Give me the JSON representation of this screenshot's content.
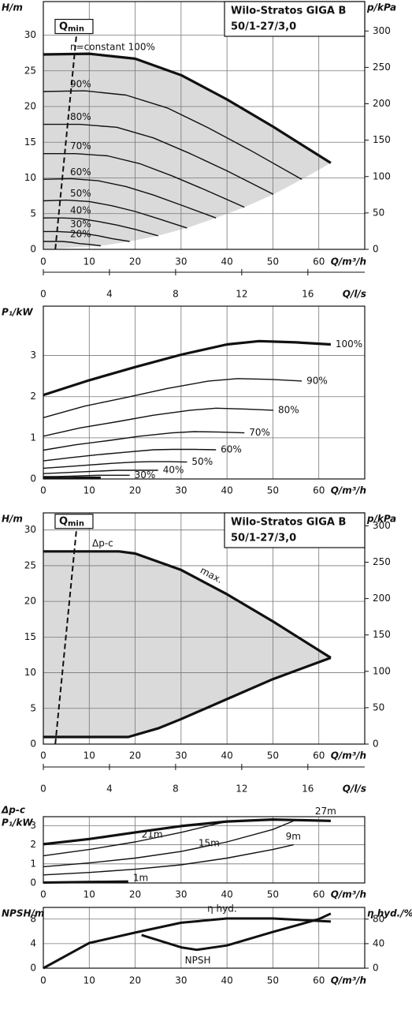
{
  "chart_data": [
    {
      "type": "line",
      "title_box": [
        "Wilo-Stratos GIGA B",
        "50/1-27/3,0"
      ],
      "ylabel": "H/m",
      "y2label": "p/kPa",
      "xlabel": "Q/m³/h",
      "x2label": "Q/l/s",
      "xlim": [
        0,
        70
      ],
      "xticks": [
        0,
        10,
        20,
        30,
        40,
        50,
        60
      ],
      "ylim": [
        0,
        34.7
      ],
      "yticks": [
        0,
        5,
        10,
        15,
        20,
        25,
        30
      ],
      "y2lim": [
        0,
        340.4
      ],
      "y2ticks": [
        0,
        50,
        100,
        150,
        200,
        250,
        300
      ],
      "x2lim": [
        0,
        19.44
      ],
      "x2ticks": [
        0,
        4,
        8,
        12,
        16
      ],
      "grid": true,
      "fill_color": "#dadada",
      "qmin": {
        "label": "Q",
        "label_sub": "min",
        "x": [
          2.6,
          7.2
        ],
        "values": [
          0,
          30
        ]
      },
      "series": [
        {
          "name": "n=constant 100%",
          "color": "#111",
          "width": 3.2,
          "x": [
            0,
            10,
            20,
            30,
            40,
            50,
            62.6
          ],
          "values": [
            27.3,
            27.4,
            26.7,
            24.4,
            21,
            17.2,
            12.1
          ]
        },
        {
          "name": "90%",
          "color": "#111",
          "width": 1.4,
          "x": [
            0,
            9,
            18,
            27,
            36,
            45,
            56.3
          ],
          "values": [
            22.1,
            22.2,
            21.6,
            19.8,
            17.0,
            13.9,
            9.8
          ]
        },
        {
          "name": "80%",
          "color": "#111",
          "width": 1.4,
          "x": [
            0,
            8,
            16,
            24,
            32,
            40,
            50.1
          ],
          "values": [
            17.5,
            17.5,
            17.1,
            15.6,
            13.4,
            11.0,
            7.7
          ]
        },
        {
          "name": "70%",
          "color": "#111",
          "width": 1.4,
          "x": [
            0,
            7,
            14,
            21,
            28,
            35,
            43.8
          ],
          "values": [
            13.4,
            13.4,
            13.1,
            12.0,
            10.3,
            8.4,
            5.9
          ]
        },
        {
          "name": "60%",
          "color": "#111",
          "width": 1.4,
          "x": [
            0,
            6,
            12,
            18,
            24,
            30,
            37.6
          ],
          "values": [
            9.8,
            9.9,
            9.6,
            8.8,
            7.6,
            6.2,
            4.4
          ]
        },
        {
          "name": "50%",
          "color": "#111",
          "width": 1.4,
          "x": [
            0,
            5,
            10,
            15,
            20,
            25,
            31.3
          ],
          "values": [
            6.8,
            6.9,
            6.7,
            6.1,
            5.3,
            4.3,
            3.0
          ]
        },
        {
          "name": "40%",
          "color": "#111",
          "width": 1.4,
          "x": [
            0,
            4,
            8,
            12,
            16,
            20,
            25
          ],
          "values": [
            4.4,
            4.4,
            4.3,
            3.9,
            3.4,
            2.8,
            1.9
          ]
        },
        {
          "name": "30%",
          "color": "#111",
          "width": 1.4,
          "x": [
            0,
            3,
            6,
            9,
            12,
            15,
            18.8
          ],
          "values": [
            2.5,
            2.5,
            2.4,
            2.2,
            1.9,
            1.5,
            1.1
          ]
        },
        {
          "name": "20%",
          "color": "#111",
          "width": 1.4,
          "x": [
            0,
            2,
            4,
            6,
            8,
            10,
            12.5
          ],
          "values": [
            1.1,
            1.1,
            1.1,
            1.0,
            0.8,
            0.7,
            0.5
          ]
        }
      ]
    },
    {
      "type": "line",
      "ylabel": "P₁/kW",
      "xlabel": "Q/m³/h",
      "xlim": [
        0,
        70
      ],
      "xticks": [
        0,
        10,
        20,
        30,
        40,
        50,
        60
      ],
      "ylim": [
        0,
        4.2
      ],
      "yticks": [
        0,
        1,
        2,
        3
      ],
      "grid": true,
      "series": [
        {
          "name": "100%",
          "color": "#111",
          "width": 3.2,
          "x": [
            0,
            10,
            20,
            30,
            40,
            47,
            55,
            62.6
          ],
          "values": [
            2.04,
            2.4,
            2.72,
            3.02,
            3.27,
            3.35,
            3.32,
            3.27
          ]
        },
        {
          "name": "90%",
          "color": "#111",
          "width": 1.4,
          "x": [
            0,
            9,
            18,
            27,
            36,
            42.3,
            49.5,
            56.3
          ],
          "values": [
            1.49,
            1.77,
            1.98,
            2.2,
            2.38,
            2.44,
            2.42,
            2.38
          ]
        },
        {
          "name": "80%",
          "color": "#111",
          "width": 1.4,
          "x": [
            0,
            8,
            16,
            24,
            32,
            37.6,
            44,
            50.1
          ],
          "values": [
            1.04,
            1.24,
            1.39,
            1.55,
            1.67,
            1.72,
            1.7,
            1.67
          ]
        },
        {
          "name": "70%",
          "color": "#111",
          "width": 1.4,
          "x": [
            0,
            7,
            14,
            21,
            28,
            32.9,
            38.5,
            43.8
          ],
          "values": [
            0.7,
            0.83,
            0.93,
            1.04,
            1.12,
            1.15,
            1.14,
            1.12
          ]
        },
        {
          "name": "60%",
          "color": "#111",
          "width": 1.4,
          "x": [
            0,
            6,
            12,
            18,
            24,
            28.2,
            33,
            37.6
          ],
          "values": [
            0.44,
            0.52,
            0.59,
            0.65,
            0.71,
            0.72,
            0.72,
            0.71
          ]
        },
        {
          "name": "50%",
          "color": "#111",
          "width": 1.4,
          "x": [
            0,
            5,
            10,
            15,
            20,
            23.5,
            27.5,
            31.3
          ],
          "values": [
            0.26,
            0.3,
            0.34,
            0.38,
            0.41,
            0.42,
            0.42,
            0.41
          ]
        },
        {
          "name": "40%",
          "color": "#111",
          "width": 1.4,
          "x": [
            0,
            4,
            8,
            12,
            16,
            18.8,
            22,
            25
          ],
          "values": [
            0.13,
            0.15,
            0.17,
            0.19,
            0.21,
            0.21,
            0.21,
            0.21
          ]
        },
        {
          "name": "30%",
          "color": "#111",
          "width": 1.4,
          "x": [
            0,
            3,
            6,
            9,
            12,
            14.1,
            16.5,
            18.8
          ],
          "values": [
            0.06,
            0.06,
            0.07,
            0.08,
            0.09,
            0.09,
            0.09,
            0.09
          ]
        },
        {
          "color": "#111",
          "width": 3,
          "x": [
            0,
            4,
            8,
            12.5
          ],
          "values": [
            0.02,
            0.02,
            0.03,
            0.03
          ]
        }
      ]
    },
    {
      "type": "line",
      "title_box": [
        "Wilo-Stratos GIGA B",
        "50/1-27/3,0"
      ],
      "ylabel": "H/m",
      "y2label": "p/kPa",
      "xlabel": "Q/m³/h",
      "x2label": "Q/l/s",
      "xlim": [
        0,
        70
      ],
      "xticks": [
        0,
        10,
        20,
        30,
        40,
        50,
        60
      ],
      "ylim": [
        0,
        32.4
      ],
      "yticks": [
        0,
        5,
        10,
        15,
        20,
        25,
        30
      ],
      "y2lim": [
        0,
        317.8
      ],
      "y2ticks": [
        0,
        50,
        100,
        150,
        200,
        250,
        300
      ],
      "x2lim": [
        0,
        19.44
      ],
      "x2ticks": [
        0,
        4,
        8,
        12,
        16
      ],
      "grid": true,
      "fill_color": "#dadada",
      "annotations": [
        "Δp-c"
      ],
      "qmin": {
        "label": "Q",
        "label_sub": "min",
        "x": [
          2.6,
          7.2
        ],
        "values": [
          0,
          30
        ]
      },
      "series": [
        {
          "name": "max.",
          "color": "#111",
          "width": 3.2,
          "x": [
            0,
            16.5,
            20,
            30,
            40,
            50,
            62.6
          ],
          "values": [
            27,
            27,
            26.7,
            24.4,
            21,
            17.2,
            12.1
          ]
        },
        {
          "color": "#111",
          "width": 3.2,
          "x": [
            0,
            18.5,
            25,
            30,
            40,
            50,
            62.6
          ],
          "values": [
            1,
            1,
            2.2,
            3.5,
            6.3,
            9.1,
            12.1
          ]
        }
      ]
    },
    {
      "type": "line",
      "ylabel": [
        "Δp-c",
        "P₁/kW"
      ],
      "xlabel": "Q/m³/h",
      "xlim": [
        0,
        70
      ],
      "xticks": [
        0,
        10,
        20,
        30,
        40,
        50,
        60
      ],
      "ylim": [
        0,
        3.47
      ],
      "yticks": [
        0,
        1,
        2,
        3
      ],
      "grid": true,
      "series": [
        {
          "name": "27m",
          "color": "#111",
          "width": 3.2,
          "x": [
            0,
            10,
            20,
            30,
            40,
            50,
            62.6
          ],
          "values": [
            2.03,
            2.3,
            2.65,
            2.98,
            3.22,
            3.32,
            3.25
          ]
        },
        {
          "name": "21m",
          "color": "#111",
          "width": 1.4,
          "x": [
            0,
            10,
            20,
            30,
            40
          ],
          "values": [
            1.42,
            1.75,
            2.15,
            2.65,
            3.22
          ]
        },
        {
          "name": "15m",
          "color": "#111",
          "width": 1.4,
          "x": [
            0,
            10,
            20,
            30,
            40,
            50,
            55
          ],
          "values": [
            0.85,
            1.05,
            1.3,
            1.65,
            2.15,
            2.8,
            3.3
          ]
        },
        {
          "name": "9m",
          "color": "#111",
          "width": 1.4,
          "x": [
            0,
            10,
            20,
            30,
            40,
            50,
            54.5
          ],
          "values": [
            0.42,
            0.55,
            0.72,
            0.95,
            1.3,
            1.75,
            2.0
          ]
        },
        {
          "name": "1m",
          "color": "#111",
          "width": 3,
          "x": [
            0,
            18.5
          ],
          "values": [
            0.02,
            0.08
          ]
        }
      ]
    },
    {
      "type": "line",
      "ylabel": "NPSH/m",
      "y2label": "η hyd./%",
      "xlabel": "Q/m³/h",
      "xlim": [
        0,
        70
      ],
      "xticks": [
        0,
        10,
        20,
        30,
        40,
        50,
        60
      ],
      "ylim": [
        0,
        9.9
      ],
      "yticks": [
        0,
        4,
        8
      ],
      "y2lim": [
        0,
        99
      ],
      "y2ticks": [
        0,
        40,
        80
      ],
      "grid": true,
      "series": [
        {
          "name": "η hyd.",
          "color": "#111",
          "width": 3,
          "axis": "y2",
          "x": [
            0,
            10,
            20,
            30,
            40,
            50,
            60,
            62.6
          ],
          "values": [
            0,
            41,
            58,
            74,
            81,
            81,
            77,
            76
          ]
        },
        {
          "name": "NPSH",
          "color": "#111",
          "width": 3,
          "x": [
            21.4,
            30,
            33.4,
            40,
            50,
            60,
            62.6
          ],
          "values": [
            5.4,
            3.4,
            3.0,
            3.7,
            5.9,
            8.0,
            8.9
          ]
        }
      ]
    }
  ]
}
